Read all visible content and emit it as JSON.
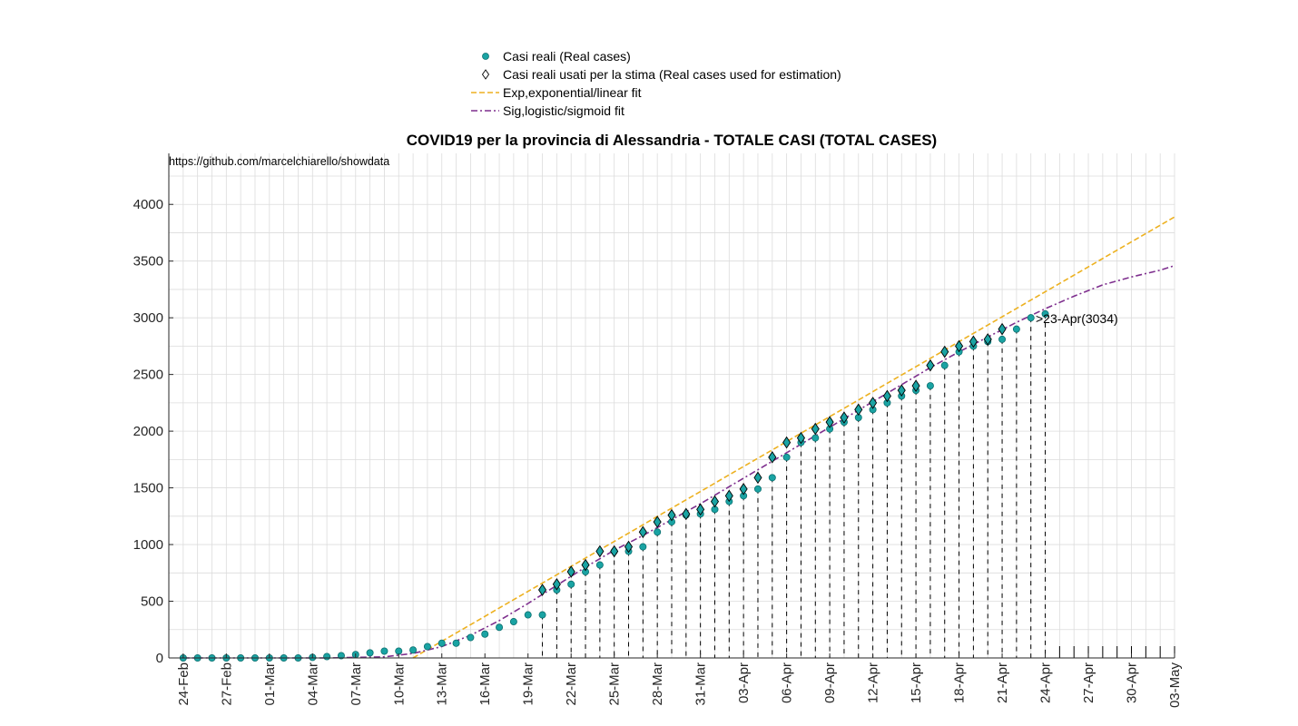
{
  "chart_data": {
    "type": "scatter",
    "title": "COVID19 per la provincia di Alessandria - TOTALE CASI (TOTAL CASES)",
    "source_note": "https://github.com/marcelchiarello/showdata",
    "annotation": ">23-Apr(3034)",
    "xlabel": "",
    "ylabel": "",
    "x_start_date": "2020-02-24",
    "x_range_days": [
      -1,
      69
    ],
    "ylim": [
      0,
      4450
    ],
    "y_ticks": [
      0,
      500,
      1000,
      1500,
      2000,
      2500,
      3000,
      3500,
      4000
    ],
    "x_tick_labels": [
      "24-Feb",
      "27-Feb",
      "01-Mar",
      "04-Mar",
      "07-Mar",
      "10-Mar",
      "13-Mar",
      "16-Mar",
      "19-Mar",
      "22-Mar",
      "25-Mar",
      "28-Mar",
      "31-Mar",
      "03-Apr",
      "06-Apr",
      "09-Apr",
      "12-Apr",
      "15-Apr",
      "18-Apr",
      "21-Apr",
      "24-Apr",
      "27-Apr",
      "30-Apr",
      "03-May"
    ],
    "grid": true,
    "legend_position": "top-center",
    "series": [
      {
        "name": "Casi reali (Real cases)",
        "kind": "points",
        "color": "#1aa3a3",
        "values": [
          0,
          0,
          0,
          0,
          0,
          0,
          0,
          0,
          0,
          5,
          12,
          20,
          30,
          45,
          60,
          60,
          70,
          100,
          130,
          130,
          180,
          210,
          270,
          320,
          380,
          380,
          600,
          650,
          760,
          820,
          940,
          940,
          980,
          1110,
          1200,
          1260,
          1270,
          1310,
          1380,
          1430,
          1490,
          1590,
          1770,
          1900,
          1940,
          2020,
          2080,
          2120,
          2190,
          2250,
          2310,
          2360,
          2400,
          2580,
          2700,
          2750,
          2790,
          2810,
          2900,
          3000,
          3034
        ]
      },
      {
        "name": "Casi reali usati per la stima (Real cases used for estimation)",
        "kind": "diamonds",
        "color": "#000000",
        "start_day": 25,
        "values": [
          600,
          650,
          760,
          820,
          940,
          940,
          980,
          1110,
          1200,
          1260,
          1270,
          1310,
          1380,
          1430,
          1490,
          1590,
          1770,
          1900,
          1940,
          2020,
          2080,
          2120,
          2190,
          2250,
          2310,
          2360,
          2400,
          2580,
          2700,
          2750,
          2790,
          2810,
          2900
        ]
      },
      {
        "name": "Exp,exponential/linear fit",
        "kind": "line",
        "color": "#edb120",
        "dash": "6,3",
        "x": [
          16,
          69
        ],
        "y": [
          0,
          3890
        ]
      },
      {
        "name": "Sig,logistic/sigmoid fit",
        "kind": "line",
        "color": "#7e2f8e",
        "dash": "7,3,2,3",
        "x": [
          0,
          10,
          14,
          16,
          18,
          20,
          22,
          24,
          25,
          26,
          28,
          30,
          32,
          34,
          36,
          38,
          40,
          42,
          44,
          46,
          48,
          50,
          52,
          54,
          56,
          58,
          60,
          62,
          64,
          66,
          68,
          69
        ],
        "y": [
          0,
          0,
          10,
          40,
          100,
          200,
          330,
          480,
          560,
          640,
          800,
          950,
          1080,
          1220,
          1360,
          1510,
          1660,
          1810,
          1960,
          2110,
          2260,
          2410,
          2560,
          2700,
          2830,
          2960,
          3080,
          3190,
          3290,
          3360,
          3420,
          3460
        ]
      }
    ]
  }
}
